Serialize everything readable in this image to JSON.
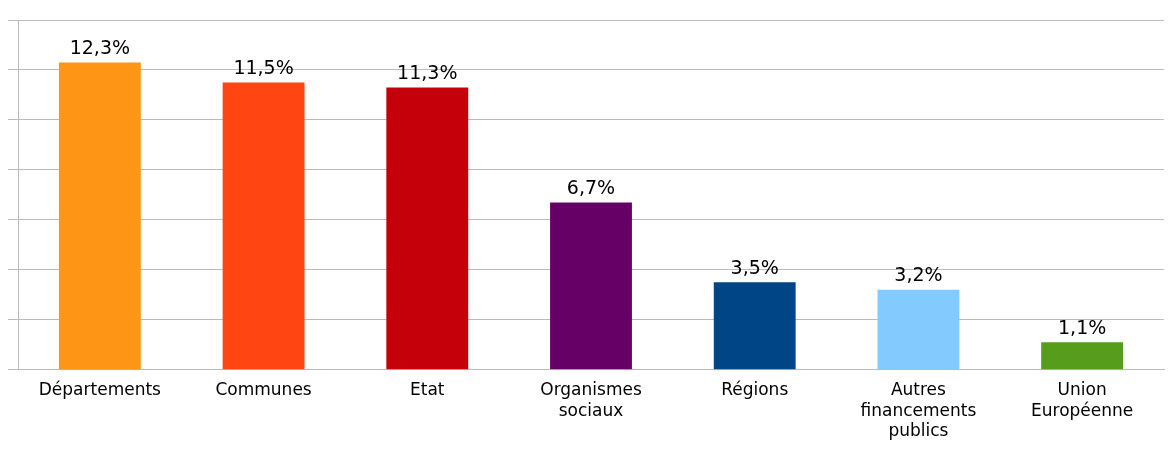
{
  "chart_data": {
    "type": "bar",
    "categories": [
      "Départements",
      "Communes",
      "Etat",
      "Organismes sociaux",
      "Régions",
      "Autres financements publics",
      "Union Européenne"
    ],
    "values": [
      12.3,
      11.5,
      11.3,
      6.7,
      3.5,
      3.2,
      1.1
    ],
    "colors": [
      "#ff9515",
      "#ff4512",
      "#c5000b",
      "#660066",
      "#004586",
      "#83caff",
      "#579d1c"
    ],
    "value_labels": [
      "12,3%",
      "11,5%",
      "11,3%",
      "6,7%",
      "3,5%",
      "3,2%",
      "1,1%"
    ],
    "ylim": [
      0,
      14
    ],
    "yticks": [
      {
        "value": 0,
        "label": null
      },
      {
        "value": 2,
        "label": null
      },
      {
        "value": 4,
        "label": null
      },
      {
        "value": 6,
        "label": null
      },
      {
        "value": 8,
        "label": null
      },
      {
        "value": 10,
        "label": null
      },
      {
        "value": 12,
        "label": null
      },
      {
        "value": 14,
        "label": null
      }
    ],
    "tick_labels": "x",
    "grid": "y",
    "legend": false
  }
}
